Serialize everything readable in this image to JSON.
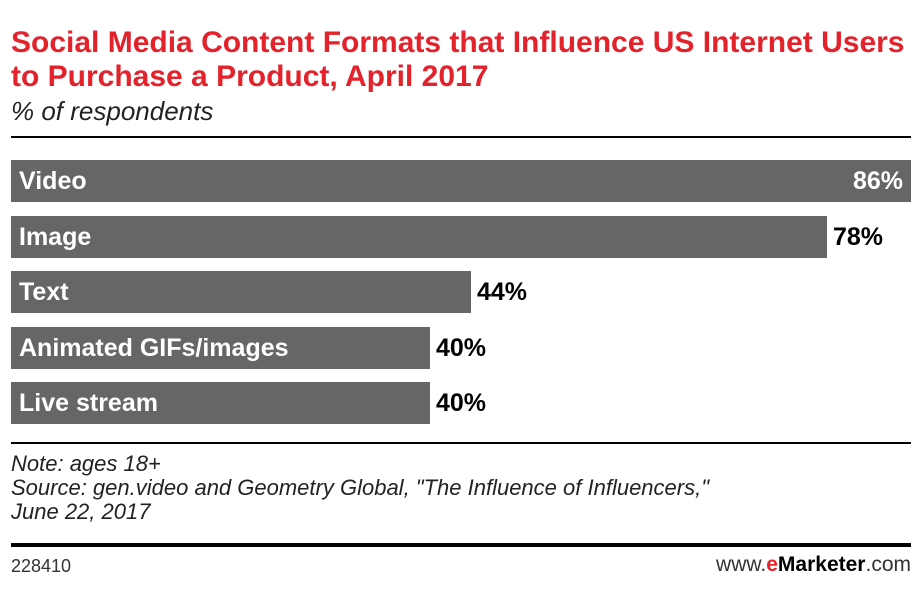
{
  "header": {
    "title": "Social Media Content Formats that Influence US Internet Users to Purchase a Product, April 2017",
    "subtitle": "% of respondents"
  },
  "chart_data": {
    "type": "bar",
    "orientation": "horizontal",
    "title": "Social Media Content Formats that Influence US Internet Users to Purchase a Product, April 2017",
    "subtitle": "% of respondents",
    "categories": [
      "Video",
      "Image",
      "Text",
      "Animated GIFs/images",
      "Live stream"
    ],
    "values": [
      86,
      78,
      44,
      40,
      40
    ],
    "value_labels": [
      "86%",
      "78%",
      "44%",
      "40%",
      "40%"
    ],
    "xlim": [
      0,
      86
    ],
    "grid": false,
    "bar_color": "#666666"
  },
  "footer": {
    "note": "Note: ages 18+",
    "source_line1": "Source: gen.video and Geometry Global, \"The Influence of Influencers,\"",
    "source_line2": "June 22, 2017",
    "chart_id": "228410",
    "brand_prefix": "www.",
    "brand_e": "e",
    "brand_name": "Marketer",
    "brand_suffix": ".com"
  },
  "colors": {
    "title": "#e3222b",
    "bar": "#666666"
  }
}
